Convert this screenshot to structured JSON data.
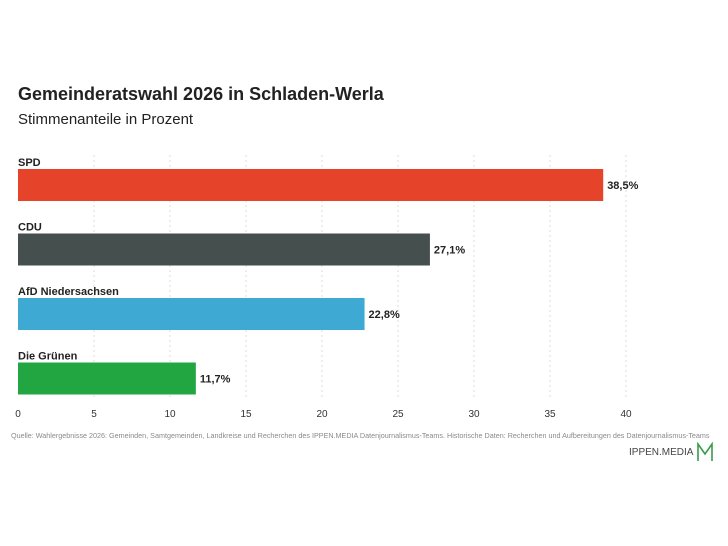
{
  "chart_data": {
    "type": "bar",
    "orientation": "horizontal",
    "title": "Gemeinderatswahl 2026 in Schladen-Werla",
    "subtitle": "Stimmenanteile in Prozent",
    "categories": [
      "SPD",
      "CDU",
      "AfD Niedersachsen",
      "Die Grünen"
    ],
    "values": [
      38.5,
      27.1,
      22.8,
      11.7
    ],
    "value_labels": [
      "38,5%",
      "27,1%",
      "22,8%",
      "11,7%"
    ],
    "colors": [
      "#e5432a",
      "#454f4e",
      "#3eaad3",
      "#22a642"
    ],
    "xlim": [
      0,
      40
    ],
    "xticks": [
      0,
      5,
      10,
      15,
      20,
      25,
      30,
      35,
      40
    ],
    "xlabel": "",
    "ylabel": "",
    "grid": "vertical dashed"
  },
  "source_text": "Quelle: Wahlergebnisse 2026: Gemeinden, Samtgemeinden, Landkreise und Recherchen des IPPEN.MEDIA Datenjournalismus-Teams. Historische Daten: Recherchen und Aufbereitungen des Datenjournalismus-Teams",
  "logo": {
    "text": "IPPEN.MEDIA",
    "color": "#3a9a4a"
  }
}
